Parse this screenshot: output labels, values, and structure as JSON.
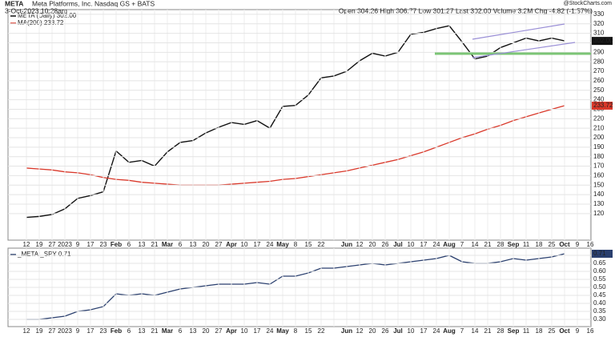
{
  "chart_data": [
    {
      "type": "line",
      "title": "META",
      "subtitle": "Meta Platforms, Inc. Nasdaq GS + BATS",
      "date": "3-Oct-2023 10:28am",
      "quote": "Open 304.26 High 306.77 Low 301.27 Last 302.00 Volume 3.2M Chg -4.82 (-1.57%)",
      "watermark": "@StockCharts.com",
      "categories": [
        "12",
        "19",
        "27",
        "2023",
        "9",
        "17",
        "23",
        "Feb",
        "6",
        "13",
        "21",
        "Mar",
        "6",
        "13",
        "20",
        "27",
        "Apr",
        "10",
        "17",
        "24",
        "May",
        "8",
        "15",
        "22",
        null,
        "Jun",
        "12",
        "20",
        "26",
        "Jul",
        "10",
        "17",
        "24",
        "Aug",
        "7",
        "14",
        "21",
        "28",
        "Sep",
        "11",
        "18",
        "25",
        "Oct",
        "9",
        "16"
      ],
      "series": [
        {
          "name": "META (Daily) 302.00",
          "color": "#111111",
          "end_label": "302.00",
          "values": [
            116,
            117,
            119,
            125,
            136,
            139,
            143,
            186,
            174,
            176,
            170,
            185,
            195,
            197,
            205,
            211,
            216,
            214,
            218,
            210,
            233,
            234,
            245,
            263,
            265,
            270,
            281,
            289,
            286,
            290,
            309,
            311,
            315,
            318,
            301,
            283,
            286,
            295,
            300,
            305,
            302,
            305,
            302,
            null,
            null
          ]
        },
        {
          "name": "MA(200) 233.72",
          "color": "#d9382a",
          "end_label": "233.72",
          "values": [
            168,
            167,
            166,
            164,
            163,
            161,
            158,
            156,
            155,
            153,
            152,
            151,
            150,
            150,
            150,
            150,
            151,
            152,
            153,
            154,
            156,
            157,
            159,
            161,
            163,
            165,
            168,
            171,
            174,
            177,
            181,
            185,
            190,
            195,
            200,
            204,
            209,
            213,
            218,
            222,
            226,
            230,
            233.72,
            null,
            null
          ]
        }
      ],
      "ylim": [
        92,
        335
      ],
      "yticks": [
        120,
        130,
        140,
        150,
        160,
        170,
        180,
        190,
        200,
        210,
        220,
        230,
        240,
        250,
        260,
        270,
        280,
        290,
        300,
        310,
        320,
        330
      ],
      "grid": true
    },
    {
      "type": "line",
      "categories": [
        "12",
        "19",
        "27",
        "2023",
        "9",
        "17",
        "23",
        "Feb",
        "6",
        "13",
        "21",
        "Mar",
        "6",
        "13",
        "20",
        "27",
        "Apr",
        "10",
        "17",
        "24",
        "May",
        "8",
        "15",
        "22",
        null,
        "Jun",
        "12",
        "20",
        "26",
        "Jul",
        "10",
        "17",
        "24",
        "Aug",
        "7",
        "14",
        "21",
        "28",
        "Sep",
        "11",
        "18",
        "25",
        "Oct",
        "9",
        "16"
      ],
      "series": [
        {
          "name": "_META:_SPY 0.71",
          "color": "#2a3f6e",
          "end_label": "0.71",
          "values": [
            0.3,
            0.3,
            0.31,
            0.32,
            0.35,
            0.36,
            0.38,
            0.46,
            0.45,
            0.46,
            0.45,
            0.47,
            0.49,
            0.5,
            0.51,
            0.52,
            0.52,
            0.52,
            0.53,
            0.52,
            0.57,
            0.57,
            0.59,
            0.62,
            0.62,
            0.63,
            0.64,
            0.65,
            0.64,
            0.65,
            0.66,
            0.67,
            0.68,
            0.7,
            0.66,
            0.65,
            0.65,
            0.66,
            0.68,
            0.67,
            0.68,
            0.69,
            0.71,
            null,
            null
          ]
        }
      ],
      "ylim": [
        0.255,
        0.745
      ],
      "yticks": [
        {
          "value": 0.3,
          "label": "0.30"
        },
        {
          "value": 0.35,
          "label": "0.35"
        },
        {
          "value": 0.4,
          "label": "0.40"
        },
        {
          "value": 0.45,
          "label": "0.45"
        },
        {
          "value": 0.5,
          "label": "0.50"
        },
        {
          "value": 0.55,
          "label": "0.55"
        },
        {
          "value": 0.6,
          "label": "0.60"
        },
        {
          "value": 0.65,
          "label": "0.65"
        },
        {
          "value": 0.7,
          "label": "0.70"
        }
      ],
      "grid": true
    }
  ]
}
